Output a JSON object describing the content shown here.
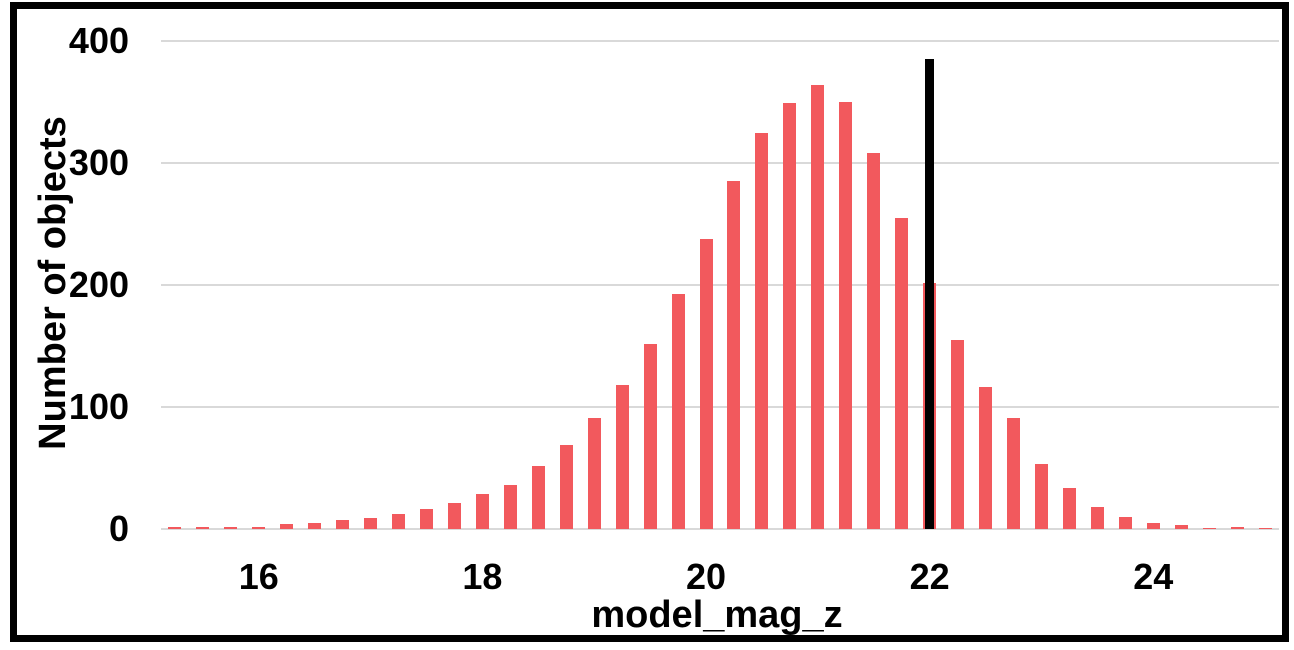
{
  "chart_data": {
    "type": "bar",
    "title": "",
    "xlabel": "model_mag_z",
    "ylabel": "Number of objects",
    "x": [
      15.25,
      15.5,
      15.75,
      16.0,
      16.25,
      16.5,
      16.75,
      17.0,
      17.25,
      17.5,
      17.75,
      18.0,
      18.25,
      18.5,
      18.75,
      19.0,
      19.25,
      19.5,
      19.75,
      20.0,
      20.25,
      20.5,
      20.75,
      21.0,
      21.25,
      21.5,
      21.75,
      22.0,
      22.25,
      22.5,
      22.75,
      23.0,
      23.25,
      23.5,
      23.75,
      24.0,
      24.25,
      24.5,
      24.75,
      25.0
    ],
    "values": [
      2,
      2,
      2,
      2,
      4,
      5,
      7,
      9,
      12,
      16,
      21,
      29,
      36,
      52,
      69,
      91,
      118,
      152,
      193,
      238,
      285,
      325,
      349,
      364,
      350,
      308,
      255,
      202,
      155,
      116,
      91,
      53,
      34,
      18,
      10,
      5,
      3,
      1,
      2,
      1
    ],
    "bin_width": 0.25,
    "xlim": [
      15.125,
      25.125
    ],
    "ylim": [
      0,
      400
    ],
    "xticks": [
      16,
      18,
      20,
      22,
      24
    ],
    "yticks": [
      0,
      100,
      200,
      300,
      400
    ],
    "grid": "horizontal",
    "legend": "none",
    "bar_color": "#F2595D",
    "gridline_color": "#D9D9D9",
    "frame_color": "#000000",
    "cutoff_line": {
      "x": 22,
      "y_top": 385,
      "color": "#000000"
    }
  }
}
